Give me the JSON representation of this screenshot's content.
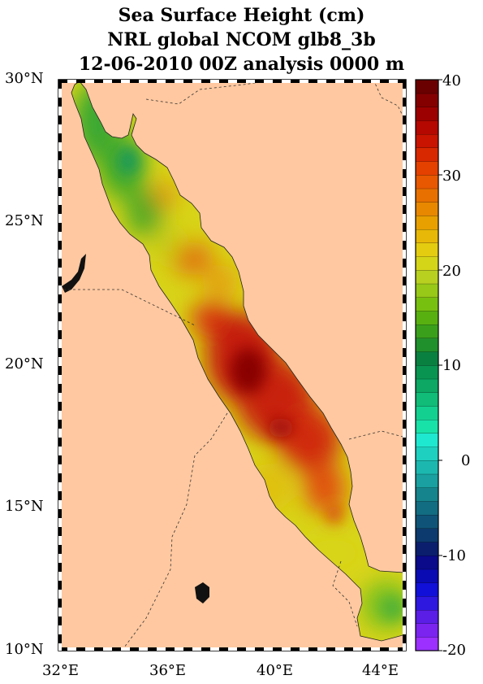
{
  "title": {
    "line1": "Sea Surface Height (cm)",
    "line2": "NRL global NCOM glb8_3b",
    "line3": "12-06-2010 00Z analysis   0000 m"
  },
  "axes": {
    "lat_labels": [
      "30°N",
      "25°N",
      "20°N",
      "15°N",
      "10°N"
    ],
    "lon_labels": [
      "32°E",
      "36°E",
      "40°E",
      "44°E"
    ]
  },
  "colorbar": {
    "ticks": [
      "40",
      "30",
      "20",
      "10",
      "0",
      "-10",
      "-20"
    ],
    "min": -20,
    "max": 40,
    "colors": [
      "#9b30ff",
      "#7b24f0",
      "#5a1ee6",
      "#2e18e0",
      "#1010d8",
      "#0b0bb4",
      "#0a0a8a",
      "#0b1e6e",
      "#0c3a6e",
      "#0f5478",
      "#126c82",
      "#16848c",
      "#1aa0a0",
      "#1cb8b0",
      "#1ed0c0",
      "#1fe8d0",
      "#18e2a8",
      "#14d090",
      "#10bc78",
      "#0ca864",
      "#0a9452",
      "#0a8040",
      "#20902c",
      "#3aa01c",
      "#58b010",
      "#78c010",
      "#98c818",
      "#b8d020",
      "#d4d418",
      "#e4cc10",
      "#e8b808",
      "#e8a000",
      "#e88800",
      "#e87000",
      "#e85800",
      "#e44000",
      "#d82800",
      "#c81400",
      "#b40800",
      "#9c0000",
      "#840000",
      "#6a0000"
    ]
  },
  "map": {
    "region": "Red Sea",
    "land_color": "#ffc8a0",
    "lat_range": [
      10,
      30
    ],
    "lon_range": [
      32,
      45
    ]
  }
}
